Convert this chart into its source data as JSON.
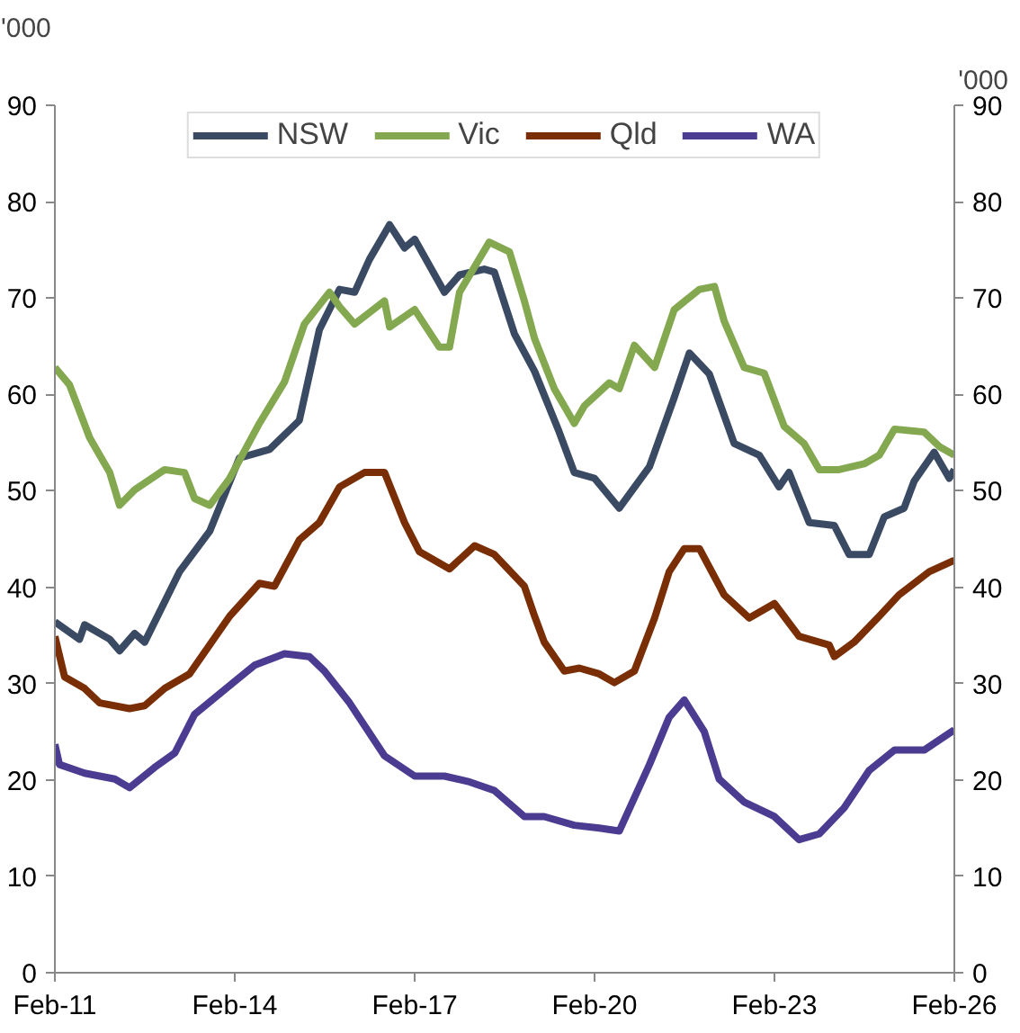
{
  "chart_data": {
    "type": "line",
    "ylabel": "'000",
    "y2label": "'000",
    "xlim": [
      "2011-02",
      "2026-02"
    ],
    "xticks": [
      {
        "value": "2011-02",
        "label": "Feb-11"
      },
      {
        "value": "2014-02",
        "label": "Feb-14"
      },
      {
        "value": "2017-02",
        "label": "Feb-17"
      },
      {
        "value": "2020-02",
        "label": "Feb-20"
      },
      {
        "value": "2023-02",
        "label": "Feb-23"
      },
      {
        "value": "2026-02",
        "label": "Feb-26"
      }
    ],
    "ylim": [
      0,
      90
    ],
    "yticks": [
      0,
      10,
      20,
      30,
      40,
      50,
      60,
      70,
      80,
      90
    ],
    "y2lim": [
      0,
      90
    ],
    "y2ticks": [
      0,
      10,
      20,
      30,
      40,
      50,
      60,
      70,
      80,
      90
    ],
    "grid": false,
    "legend": "top",
    "line_style": "solid",
    "marker": "none",
    "series": [
      {
        "name": "NSW",
        "color": "#3b4a63",
        "x": [
          "2011-02",
          "2011-07",
          "2011-08",
          "2012-01",
          "2012-03",
          "2012-06",
          "2012-08",
          "2013-03",
          "2013-09",
          "2014-03",
          "2014-09",
          "2015-03",
          "2015-07",
          "2015-11",
          "2016-02",
          "2016-05",
          "2016-09",
          "2016-12",
          "2017-02",
          "2017-08",
          "2017-11",
          "2018-04",
          "2018-06",
          "2018-10",
          "2019-02",
          "2019-07",
          "2019-10",
          "2020-02",
          "2020-07",
          "2021-01",
          "2021-06",
          "2021-09",
          "2022-01",
          "2022-06",
          "2022-11",
          "2023-03",
          "2023-05",
          "2023-09",
          "2024-02",
          "2024-05",
          "2024-09",
          "2024-12",
          "2025-04",
          "2025-06",
          "2025-10",
          "2026-01",
          "2026-02"
        ],
        "values": [
          36.4,
          34.6,
          36.1,
          34.6,
          33.4,
          35.2,
          34.3,
          41.6,
          45.8,
          53.4,
          54.3,
          57.3,
          66.7,
          70.9,
          70.6,
          74,
          77.6,
          75.2,
          76.1,
          70.6,
          72.4,
          73,
          72.7,
          66.3,
          62.4,
          56.1,
          51.9,
          51.3,
          48.2,
          52.5,
          59.7,
          64.3,
          62.1,
          54.9,
          53.7,
          50.4,
          51.9,
          46.7,
          46.4,
          43.4,
          43.4,
          47.3,
          48.2,
          51,
          54,
          51.3,
          52.2
        ]
      },
      {
        "name": "Vic",
        "color": "#84a850",
        "x": [
          "2011-02",
          "2011-05",
          "2011-09",
          "2012-01",
          "2012-03",
          "2012-06",
          "2012-12",
          "2013-04",
          "2013-06",
          "2013-09",
          "2014-01",
          "2014-07",
          "2014-12",
          "2015-04",
          "2015-09",
          "2015-11",
          "2016-02",
          "2016-08",
          "2016-09",
          "2017-02",
          "2017-07",
          "2017-09",
          "2017-11",
          "2018-05",
          "2018-09",
          "2018-12",
          "2019-02",
          "2019-06",
          "2019-10",
          "2019-12",
          "2020-05",
          "2020-07",
          "2020-10",
          "2021-02",
          "2021-06",
          "2021-11",
          "2022-02",
          "2022-04",
          "2022-08",
          "2022-12",
          "2023-04",
          "2023-08",
          "2023-11",
          "2024-03",
          "2024-08",
          "2024-11",
          "2025-02",
          "2025-08",
          "2025-11",
          "2026-02"
        ],
        "values": [
          62.8,
          61,
          55.5,
          51.9,
          48.5,
          50.1,
          52.2,
          51.9,
          49.2,
          48.5,
          51.3,
          57,
          61.3,
          67.3,
          70.6,
          69.1,
          67.3,
          69.7,
          67,
          68.8,
          64.9,
          64.9,
          70.6,
          75.8,
          74.8,
          69.7,
          65.8,
          60.6,
          57,
          58.8,
          61.2,
          60.6,
          65.1,
          62.8,
          68.8,
          70.9,
          71.2,
          67.6,
          62.8,
          62.2,
          56.7,
          54.9,
          52.2,
          52.2,
          52.8,
          53.7,
          56.4,
          56.1,
          54.6,
          53.7
        ]
      },
      {
        "name": "Qld",
        "color": "#7a2e05",
        "x": [
          "2011-02",
          "2011-04",
          "2011-08",
          "2011-11",
          "2012-05",
          "2012-08",
          "2012-12",
          "2013-05",
          "2014-01",
          "2014-07",
          "2014-10",
          "2015-03",
          "2015-07",
          "2015-11",
          "2016-04",
          "2016-08",
          "2016-12",
          "2017-03",
          "2017-09",
          "2018-02",
          "2018-06",
          "2018-12",
          "2019-02",
          "2019-04",
          "2019-08",
          "2019-11",
          "2020-03",
          "2020-06",
          "2020-10",
          "2021-02",
          "2021-05",
          "2021-08",
          "2021-11",
          "2022-04",
          "2022-09",
          "2023-02",
          "2023-07",
          "2024-01",
          "2024-02",
          "2024-06",
          "2024-11",
          "2025-03",
          "2025-09",
          "2026-02"
        ],
        "values": [
          34.9,
          30.7,
          29.5,
          28,
          27.4,
          27.7,
          29.5,
          31,
          37,
          40.4,
          40.1,
          44.9,
          46.7,
          50.4,
          51.9,
          51.9,
          46.7,
          43.7,
          41.9,
          44.3,
          43.4,
          40.1,
          37,
          34.3,
          31.3,
          31.6,
          31,
          30.1,
          31.3,
          36.8,
          41.6,
          44,
          44,
          39.2,
          36.8,
          38.3,
          34.9,
          34,
          32.8,
          34.3,
          37,
          39.2,
          41.6,
          42.8
        ]
      },
      {
        "name": "WA",
        "color": "#4b3c91",
        "x": [
          "2011-02",
          "2011-03",
          "2011-08",
          "2012-02",
          "2012-05",
          "2012-10",
          "2013-02",
          "2013-06",
          "2014-01",
          "2014-06",
          "2014-12",
          "2015-05",
          "2015-08",
          "2016-01",
          "2016-08",
          "2017-02",
          "2017-08",
          "2018-01",
          "2018-06",
          "2018-12",
          "2019-04",
          "2019-10",
          "2020-03",
          "2020-07",
          "2021-01",
          "2021-05",
          "2021-08",
          "2021-12",
          "2022-03",
          "2022-08",
          "2023-02",
          "2023-07",
          "2023-11",
          "2024-04",
          "2024-09",
          "2025-02",
          "2025-08",
          "2026-02"
        ],
        "values": [
          23.7,
          21.6,
          20.7,
          20.1,
          19.2,
          21.3,
          22.8,
          26.8,
          29.8,
          31.9,
          33.1,
          32.8,
          31.3,
          28,
          22.5,
          20.4,
          20.4,
          19.8,
          18.9,
          16.2,
          16.2,
          15.3,
          15,
          14.7,
          21.6,
          26.5,
          28.3,
          25,
          20.1,
          17.7,
          16.2,
          13.8,
          14.4,
          17.1,
          21,
          23.1,
          23.1,
          25.2
        ]
      }
    ]
  }
}
